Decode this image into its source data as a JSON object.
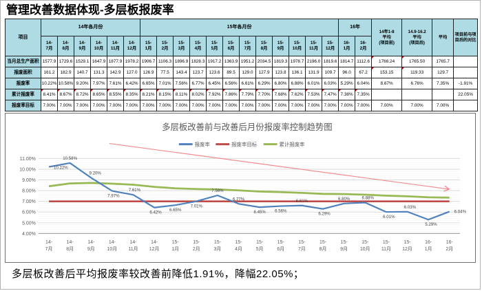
{
  "page": {
    "title": "管理改善数据体现-多层板报废率",
    "footer": "多层板改善后平均报废率较改善前降低1.91%，降幅22.05%；"
  },
  "table": {
    "corner_label": "项目",
    "groups": [
      {
        "label": "14年各月份",
        "span": 6
      },
      {
        "label": "15年各月份",
        "span": 12
      },
      {
        "label": "16年",
        "span": 2
      }
    ],
    "month_columns": [
      "14-7月",
      "14-8月",
      "14-9月",
      "14-10月",
      "14-11月",
      "14-12月",
      "15-1月",
      "15-2月",
      "15-3月",
      "15-4月",
      "15-5月",
      "15-6月",
      "15-7月",
      "15-8月",
      "15-9月",
      "15-10月",
      "15-11月",
      "15-12月",
      "16-1月",
      "16-2月"
    ],
    "summary_columns": [
      "14年1-8\n平均\n(项目前)",
      "14.9-16.2\n平均\n(项目后)",
      "平均"
    ],
    "compare_column": "项目前与项目后的对比",
    "rows": [
      {
        "label": "当月总生产面积",
        "values": [
          "1577.9",
          "1729.6",
          "1529.1",
          "1647.9",
          "1877.9",
          "1978.2",
          "1906.7",
          "1106.3",
          "1896.9",
          "1828.3",
          "1917.2",
          "1363.9",
          "1951.2",
          "2034.5",
          "1819.3",
          "1978.7",
          "2196.0",
          "1819.6",
          "1814.7",
          "1112.6"
        ],
        "summary": [
          "1766.24",
          "1765.50",
          "1765.7"
        ],
        "compare": ""
      },
      {
        "label": "报废面积",
        "values": [
          "161.2",
          "182.9",
          "140.7",
          "131.3",
          "142.9",
          "127.0",
          "126.9",
          "77.5",
          "143.4",
          "123.7",
          "123.6",
          "89.5",
          "129.0",
          "127.9",
          "123.8",
          "136.1",
          "131.9",
          "109.7",
          "96.0",
          "67.2"
        ],
        "summary": [
          "153.15",
          "119.33",
          "129.7"
        ],
        "compare": ""
      },
      {
        "label": "报废率",
        "values": [
          "10.22%",
          "10.58%",
          "9.20%",
          "7.97%",
          "7.61%",
          "6.42%",
          "6.65%",
          "7.01%",
          "7.56%",
          "6.77%",
          "6.45%",
          "6.56%",
          "6.61%",
          "6.29%",
          "6.80%",
          "6.88%",
          "6.01%",
          "6.03%",
          "5.29%",
          "6.04%"
        ],
        "summary": [
          "8.67%",
          "6.76%",
          "7.35%"
        ],
        "compare": "-1.91%"
      },
      {
        "label": "累计报废率",
        "values": [
          "8.41%",
          "8.67%",
          "8.72%",
          "8.65%",
          "8.55%",
          "8.35%",
          "8.21%",
          "8.15%",
          "8.11%",
          "8.02%",
          "7.92%",
          "7.86%",
          "7.79%",
          "7.70%",
          "7.68%",
          "7.62%",
          "7.53%",
          "7.47%",
          "7.38%",
          "7.35%"
        ],
        "summary": [
          "",
          "",
          ""
        ],
        "compare": "22.05%"
      },
      {
        "label": "报废率目标",
        "values": [
          "7.00%",
          "7.00%",
          "7.00%",
          "7.00%",
          "7.00%",
          "7.00%",
          "7.00%",
          "7.00%",
          "7.00%",
          "7.00%",
          "7.00%",
          "7.00%",
          "7.00%",
          "7.00%",
          "7.00%",
          "7.00%",
          "7.00%",
          "7.00%",
          "7.00%",
          "7.00%"
        ],
        "summary": [
          "7.00%",
          "7.00%",
          "7.00%"
        ],
        "compare": ""
      }
    ]
  },
  "chart_data": {
    "type": "line",
    "title": "多层板改善前与改善后月份报废率控制趋势图",
    "categories": [
      "14-7月",
      "14-8月",
      "14-9月",
      "14-10月",
      "14-11月",
      "14-12月",
      "15-1月",
      "15-2月",
      "15-3月",
      "15-4月",
      "15-5月",
      "15-6月",
      "15-7月",
      "15-8月",
      "15-9月",
      "15-10月",
      "15-11月",
      "15-12月",
      "16-1月",
      "16-2月"
    ],
    "series": [
      {
        "name": "报废率",
        "color": "#4f81bd",
        "values": [
          10.22,
          10.58,
          9.2,
          7.97,
          7.61,
          6.42,
          6.65,
          7.01,
          7.56,
          6.77,
          6.45,
          6.56,
          6.61,
          6.29,
          6.8,
          6.88,
          6.01,
          6.03,
          5.29,
          6.04
        ],
        "data_labels": true
      },
      {
        "name": "报废率目标",
        "color": "#be4b48",
        "values": [
          7.0,
          7.0,
          7.0,
          7.0,
          7.0,
          7.0,
          7.0,
          7.0,
          7.0,
          7.0,
          7.0,
          7.0,
          7.0,
          7.0,
          7.0,
          7.0,
          7.0,
          7.0,
          7.0,
          7.0
        ],
        "data_labels": false
      },
      {
        "name": "累计报废率",
        "color": "#98b954",
        "values": [
          8.41,
          8.67,
          8.72,
          8.65,
          8.55,
          8.35,
          8.21,
          8.15,
          8.11,
          8.02,
          7.92,
          7.86,
          7.79,
          7.7,
          7.68,
          7.62,
          7.53,
          7.47,
          7.38,
          7.35
        ],
        "data_labels": false
      }
    ],
    "ylim": [
      4,
      11
    ],
    "ytick_step": 1,
    "ytick_labels": [
      "4.00%",
      "5.00%",
      "6.00%",
      "7.00%",
      "8.00%",
      "9.00%",
      "10.00%",
      "11.00%"
    ],
    "grid": true,
    "legend_position": "top",
    "annotation_arrow": {
      "description": "downward trend arrow",
      "color": "#f28b8f"
    }
  },
  "colors": {
    "table_header_fill": "#aedbe4",
    "comment_marker": "#c00000",
    "axis_text": "#595959",
    "gridline": "#d9d9d9"
  }
}
